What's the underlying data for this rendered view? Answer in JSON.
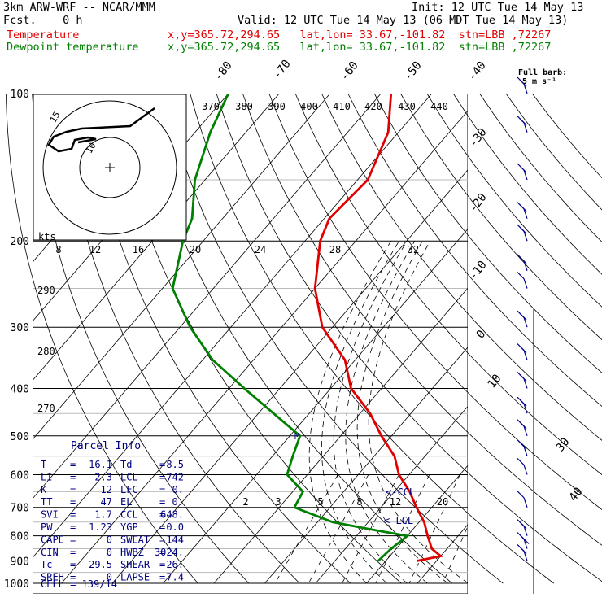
{
  "header": {
    "model": "3km ARW-WRF -- NCAR/MMM",
    "init": "Init: 12 UTC Tue 14 May 13",
    "fcst": "Fcst.    0 h",
    "valid": "Valid: 12 UTC Tue 14 May 13 (06 MDT Tue 14 May 13)",
    "temp_label": "Temperature",
    "dew_label": "Dewpoint temperature",
    "temp_info": "x,y=365.72,294.65   lat,lon= 33.67,-101.82  stn=LBB ,72267",
    "dew_info": "x,y=365.72,294.65   lat,lon= 33.67,-101.82  stn=LBB ,72267",
    "barb_note_1": "Full barb:",
    "barb_note_2": "5 m s⁻¹"
  },
  "hodograph": {
    "unit": "kts",
    "ring_labels": [
      "15",
      "10"
    ]
  },
  "parcel_info": {
    "title": "Parcel Info",
    "rows": [
      {
        "k1": "T",
        "v1": "16.1",
        "k2": "Td",
        "v2": "8.5"
      },
      {
        "k1": "LI",
        "v1": "2.3",
        "k2": "LCL",
        "v2": "742"
      },
      {
        "k1": "K",
        "v1": "12",
        "k2": "LFC",
        "v2": "0."
      },
      {
        "k1": "TT",
        "v1": "47",
        "k2": "EL",
        "v2": "0."
      },
      {
        "k1": "SVI",
        "v1": "1.7",
        "k2": "CCL",
        "v2": "648."
      },
      {
        "k1": "PW",
        "v1": "1.23",
        "k2": "YGP",
        "v2": "0.0"
      },
      {
        "k1": "CAPE",
        "v1": "0",
        "k2": "SWEAT",
        "v2": "144"
      },
      {
        "k1": "CIN",
        "v1": "0",
        "k2": "HWBZ",
        "v2": "3024."
      },
      {
        "k1": "Tc",
        "v1": "29.5",
        "k2": "SHEAR",
        "v2": "26."
      },
      {
        "k1": "SREH",
        "v1": "0",
        "k2": "LAPSE",
        "v2": "7.4"
      }
    ],
    "cell": "CELL = 139/14"
  },
  "markers": {
    "ccl": "<-CCL",
    "lcl": "<-LCL",
    "el_mark": "M"
  },
  "colors": {
    "temperature": "#e00000",
    "dewpoint": "#008000",
    "grid": "#000000",
    "parcel_text": "#000080",
    "barbs": "#00008b"
  },
  "chart_data": {
    "type": "line",
    "title": "Skew-T log-P",
    "y_axis": "pressure (hPa)",
    "pressure_labels": [
      100,
      200,
      300,
      400,
      500,
      600,
      700,
      800,
      900,
      1000
    ],
    "skewed_temperature_labels": [
      -80,
      -70,
      -60,
      -50,
      -40,
      -30,
      -20,
      -10,
      0,
      10,
      20,
      30,
      40
    ],
    "theta_labels_top": [
      370,
      380,
      390,
      400,
      410,
      420,
      430,
      440
    ],
    "theta_labels_left": [
      290,
      280,
      270
    ],
    "mixing_ratio_labels_upper": [
      8,
      12,
      16,
      20,
      24,
      28,
      32
    ],
    "mixing_ratio_labels_lower": [
      2,
      3,
      5,
      8,
      12,
      20
    ],
    "series": [
      {
        "name": "Temperature",
        "color": "#e00000",
        "points": [
          {
            "p": 100,
            "t": -68
          },
          {
            "p": 120,
            "t": -62
          },
          {
            "p": 150,
            "t": -58
          },
          {
            "p": 180,
            "t": -59
          },
          {
            "p": 200,
            "t": -57
          },
          {
            "p": 250,
            "t": -50
          },
          {
            "p": 300,
            "t": -42
          },
          {
            "p": 350,
            "t": -32
          },
          {
            "p": 400,
            "t": -26
          },
          {
            "p": 450,
            "t": -18
          },
          {
            "p": 500,
            "t": -12
          },
          {
            "p": 550,
            "t": -6
          },
          {
            "p": 600,
            "t": -2
          },
          {
            "p": 650,
            "t": 3
          },
          {
            "p": 700,
            "t": 7
          },
          {
            "p": 750,
            "t": 11
          },
          {
            "p": 800,
            "t": 14
          },
          {
            "p": 850,
            "t": 17
          },
          {
            "p": 880,
            "t": 20
          },
          {
            "p": 900,
            "t": 16.1
          }
        ]
      },
      {
        "name": "Dewpoint temperature",
        "color": "#008000",
        "points": [
          {
            "p": 100,
            "t": -100
          },
          {
            "p": 120,
            "t": -97
          },
          {
            "p": 150,
            "t": -92
          },
          {
            "p": 180,
            "t": -86
          },
          {
            "p": 200,
            "t": -84
          },
          {
            "p": 250,
            "t": -78
          },
          {
            "p": 300,
            "t": -68
          },
          {
            "p": 350,
            "t": -58
          },
          {
            "p": 400,
            "t": -47
          },
          {
            "p": 450,
            "t": -37
          },
          {
            "p": 500,
            "t": -28
          },
          {
            "p": 550,
            "t": -26
          },
          {
            "p": 600,
            "t": -24
          },
          {
            "p": 650,
            "t": -18
          },
          {
            "p": 700,
            "t": -17
          },
          {
            "p": 750,
            "t": -7
          },
          {
            "p": 780,
            "t": 3
          },
          {
            "p": 800,
            "t": 10
          },
          {
            "p": 850,
            "t": 9
          },
          {
            "p": 900,
            "t": 8.5
          }
        ]
      }
    ],
    "wind_barbs": [
      {
        "p": 100,
        "dir": 290,
        "kt": 20
      },
      {
        "p": 120,
        "dir": 290,
        "kt": 20
      },
      {
        "p": 150,
        "dir": 290,
        "kt": 20
      },
      {
        "p": 180,
        "dir": 290,
        "kt": 20
      },
      {
        "p": 200,
        "dir": 290,
        "kt": 20
      },
      {
        "p": 230,
        "dir": 290,
        "kt": 20
      },
      {
        "p": 250,
        "dir": 300,
        "kt": 10
      },
      {
        "p": 300,
        "dir": 280,
        "kt": 15
      },
      {
        "p": 350,
        "dir": 270,
        "kt": 15
      },
      {
        "p": 400,
        "dir": 260,
        "kt": 20
      },
      {
        "p": 450,
        "dir": 260,
        "kt": 20
      },
      {
        "p": 500,
        "dir": 255,
        "kt": 20
      },
      {
        "p": 550,
        "dir": 250,
        "kt": 15
      },
      {
        "p": 600,
        "dir": 240,
        "kt": 10
      },
      {
        "p": 700,
        "dir": 200,
        "kt": 10
      },
      {
        "p": 800,
        "dir": 180,
        "kt": 15
      },
      {
        "p": 850,
        "dir": 190,
        "kt": 25
      },
      {
        "p": 900,
        "dir": 200,
        "kt": 20
      }
    ]
  }
}
